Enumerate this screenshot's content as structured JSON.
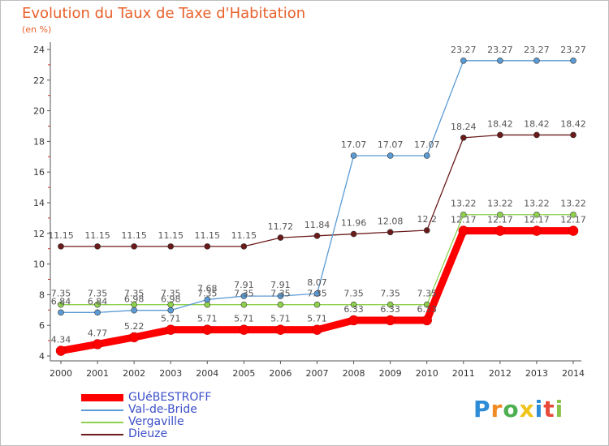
{
  "chart_data": {
    "type": "line",
    "title": "Evolution du Taux de Taxe d'Habitation",
    "subtitle": "(en %)",
    "x": [
      2000,
      2001,
      2002,
      2003,
      2004,
      2005,
      2006,
      2007,
      2008,
      2009,
      2010,
      2011,
      2012,
      2013,
      2014
    ],
    "ylim": [
      4,
      24
    ],
    "yticks": [
      4,
      6,
      8,
      10,
      12,
      14,
      16,
      18,
      20,
      22,
      24
    ],
    "grid": false,
    "legend_position": "bottom-left",
    "series": [
      {
        "name": "GUéBESTROFF",
        "color": "#ff0000",
        "values": [
          4.34,
          4.77,
          5.22,
          5.71,
          5.71,
          5.71,
          5.71,
          5.71,
          6.33,
          6.33,
          6.33,
          12.17,
          12.17,
          12.17,
          12.17
        ],
        "labels": [
          "4.34",
          "4.77",
          "5.22",
          "5.71",
          "5.71",
          "5.71",
          "5.71",
          "5.71",
          "6.33",
          "6.33",
          "6.33",
          "12.17",
          "12.17",
          "12.17",
          "12.17"
        ]
      },
      {
        "name": "Val-de-Bride",
        "color": "#5b9bd5",
        "values": [
          6.84,
          6.84,
          6.98,
          6.98,
          7.68,
          7.91,
          7.91,
          8.07,
          17.07,
          17.07,
          17.07,
          23.27,
          23.27,
          23.27,
          23.27
        ],
        "labels": [
          "6.84",
          "6.84",
          "6.98",
          "6.98",
          "7.68",
          "7.91",
          "7.91",
          "8.07",
          "17.07",
          "17.07",
          "17.07",
          "23.27",
          "23.27",
          "23.27",
          "23.27"
        ]
      },
      {
        "name": "Vergaville",
        "color": "#8fd14f",
        "values": [
          7.35,
          7.35,
          7.35,
          7.35,
          7.35,
          7.35,
          7.35,
          7.35,
          7.35,
          7.35,
          7.35,
          13.22,
          13.22,
          13.22,
          13.22
        ],
        "labels": [
          "7.35",
          "7.35",
          "7.35",
          "7.35",
          "7.35",
          "7.35",
          "7.35",
          "7.35",
          "7.35",
          "7.35",
          "7.35",
          "13.22",
          "13.22",
          "13.22",
          "13.22"
        ]
      },
      {
        "name": "Dieuze",
        "color": "#6b1a1a",
        "values": [
          11.15,
          11.15,
          11.15,
          11.15,
          11.15,
          11.15,
          11.72,
          11.84,
          11.96,
          12.08,
          12.2,
          18.24,
          18.42,
          18.42,
          18.42
        ],
        "labels": [
          "11.15",
          "11.15",
          "11.15",
          "11.15",
          "11.15",
          "11.15",
          "11.72",
          "11.84",
          "11.96",
          "12.08",
          "12.2",
          "18.24",
          "18.42",
          "18.42",
          "18.42"
        ]
      }
    ]
  },
  "brand": {
    "text": "Proxiti",
    "colors": [
      "#2e8bd6",
      "#f08a24",
      "#4caf50",
      "#f0c419",
      "#2e8bd6",
      "#e84a3a",
      "#8bc34a"
    ]
  }
}
